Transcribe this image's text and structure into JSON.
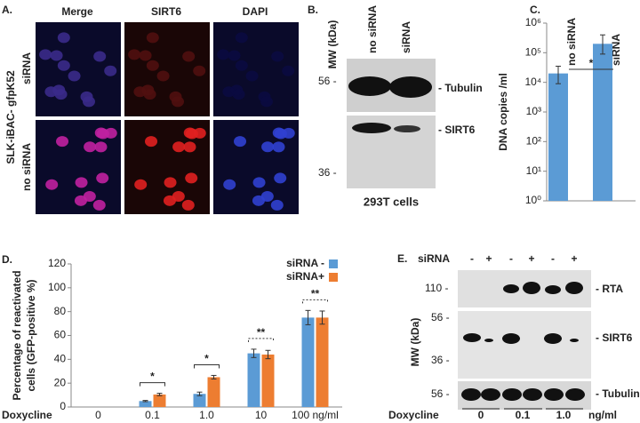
{
  "panel_a": {
    "label": "A.",
    "columns": [
      "Merge",
      "SIRT6",
      "DAPI"
    ],
    "rows": [
      "siRNA",
      "no siRNA"
    ],
    "cell_line": "SLK-iBAC- gfpK52"
  },
  "panel_b": {
    "label": "B.",
    "mw_label": "MW (kDa)",
    "lanes": [
      "no siRNA",
      "siRNA"
    ],
    "markers": [
      "56 -",
      "36 -"
    ],
    "bands": [
      "- Tubulin",
      "- SIRT6"
    ],
    "caption": "293T cells"
  },
  "panel_e": {
    "label": "E.",
    "sirna_label": "siRNA",
    "signs": [
      "-",
      "+",
      "-",
      "+",
      "-",
      "+"
    ],
    "mw_label": "MW (kDa)",
    "markers": [
      "110 -",
      "56 -",
      "36 -",
      "56 -"
    ],
    "bands": [
      "- RTA",
      "- SIRT6",
      "- Tubulin"
    ],
    "dox_label": "Doxycline",
    "doses": [
      "0",
      "0.1",
      "1.0",
      "ng/ml"
    ]
  },
  "chart_data": [
    {
      "type": "bar",
      "label": "C.",
      "ylabel": [
        "DNA copies /ml"
      ],
      "categories": [
        "no siRNA",
        "siRNA"
      ],
      "values": [
        20000,
        200000
      ],
      "error_low": [
        11000,
        110000
      ],
      "error_high": [
        15000,
        200000
      ],
      "color": "#5b9bd5",
      "log_scale": true,
      "ylim": [
        1,
        1000000
      ],
      "yticks": [
        {
          "value": 1,
          "label": "10⁰"
        },
        {
          "value": 10,
          "label": "10¹"
        },
        {
          "value": 100,
          "label": "10²"
        },
        {
          "value": 1000,
          "label": "10³"
        },
        {
          "value": 10000,
          "label": "10⁴"
        },
        {
          "value": 100000,
          "label": "10⁵"
        },
        {
          "value": 1000000,
          "label": "10⁶"
        }
      ],
      "annotations": [
        "*"
      ],
      "grid": false
    },
    {
      "type": "bar",
      "label": "D.",
      "ylabel": [
        "Percentage of reactivated",
        "cells (GFP-positive %)"
      ],
      "xlabel": "Doxycline",
      "categories": [
        "0",
        "0.1",
        "1.0",
        "10",
        "100 ng/ml"
      ],
      "series": [
        {
          "name": "siRNA -",
          "color": "#5b9bd5",
          "values": [
            0,
            5,
            11,
            45,
            75
          ],
          "errors": [
            0,
            0.5,
            1.5,
            3.5,
            6
          ]
        },
        {
          "name": "siRNA+",
          "color": "#ed7d31",
          "values": [
            0,
            10.5,
            25,
            44,
            75
          ],
          "errors": [
            0,
            1,
            1.5,
            3.5,
            5.5
          ]
        }
      ],
      "ylim": [
        0,
        120
      ],
      "yticks": [
        0,
        20,
        40,
        60,
        80,
        100,
        120
      ],
      "annotations": [
        null,
        "*",
        "*",
        "**",
        "**"
      ],
      "legend": "top-right",
      "grid": false
    }
  ]
}
